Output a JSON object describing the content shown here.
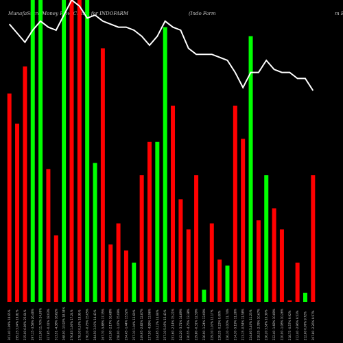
{
  "chart_data": {
    "type": "bar",
    "title": "MunafaSutra Money Flow Charts for INDOFARM",
    "subtitle": "(Indo Farm",
    "title_right": "m E",
    "ylim": [
      0,
      100
    ],
    "colors": {
      "up": "#00ff00",
      "down": "#ff0000",
      "line": "#ffffff",
      "background": "#000000"
    },
    "x_tick_labels": [
      "301.40 1.99% 18.65%",
      "295.25 3.04% 19.82%",
      "315.00 6.80% 25.64%",
      "297.15 -3.58% 26.46%",
      "331.90 11.70% 24.89%",
      "327.85 -0.41% 18.03%",
      "313.51 -4.38% 18.82%",
      "268.00 -13.92% 18.34%",
      "276.83 1.60% 17.24%",
      "278.30 0.55% 18.95%",
      "276.10 -0.75% 15.05%",
      "284.50 3.01% 14.43%",
      "267.70 -5.88% 17.35%",
      "261.90 -2.17% 16.68%",
      "258.00 -1.47% 15.09%",
      "254.45 -1.44% 13.52%",
      "257.10 1.04% 13.69%",
      "249.95 -2.82% 12.87%",
      "237.50 -4.99% 13.96%",
      "244.95 3.12% 14.68%",
      "257.10 5.05% 15.43%",
      "251.60 -2.14% 15.21%",
      "242.20 -3.71% 14.89%",
      "230.55 -4.75% 13.38%",
      "229.80 -0.31% 12.59%",
      "226.90 -1.24% 13.09%",
      "229.10 1.01% 12.17%",
      "228.35 -0.23% 0.00%",
      "226.10 -1.00% 11.74%",
      "214.30 -5.19% 11.26%",
      "213.15 -0.54% 11.58%",
      "224.60 5.40% 11.23%",
      "218.35 -2.78% 10.67%",
      "226.20 3.58% 10.39%",
      "222.40 -1.68% 10.89%",
      "220.00 -1.08% 10.26%",
      "218.75 -0.57% 9.92%",
      "212.40 -2.96% 9.53%",
      "212.60 0.09% 9.72%",
      "207.80 -2.26% 9.57%"
    ],
    "series": [
      {
        "values": [
          69,
          59,
          78,
          100,
          100,
          44,
          22,
          100,
          100,
          100,
          100,
          46,
          84,
          19,
          26,
          17,
          13,
          42,
          53,
          53,
          91,
          65,
          34,
          24,
          42,
          4,
          26,
          14,
          12,
          65,
          54,
          88,
          27,
          42,
          31,
          24,
          0.5,
          13,
          3,
          42
        ],
        "colors": [
          "red",
          "red",
          "red",
          "green",
          "green",
          "red",
          "red",
          "green",
          "red",
          "red",
          "green",
          "green",
          "red",
          "red",
          "red",
          "red",
          "green",
          "red",
          "red",
          "green",
          "green",
          "red",
          "red",
          "red",
          "red",
          "green",
          "red",
          "red",
          "green",
          "red",
          "red",
          "green",
          "red",
          "green",
          "red",
          "red",
          "red",
          "red",
          "green",
          "red"
        ]
      },
      {
        "values": [
          92,
          89,
          86,
          90,
          93,
          91,
          90,
          95,
          100,
          98,
          94,
          95,
          93,
          92,
          91,
          91,
          90,
          88,
          85,
          88,
          93,
          91,
          90,
          84,
          82,
          82,
          82,
          81,
          80,
          76,
          71,
          76,
          76,
          80,
          77,
          76,
          76,
          74,
          74,
          70
        ]
      }
    ]
  }
}
